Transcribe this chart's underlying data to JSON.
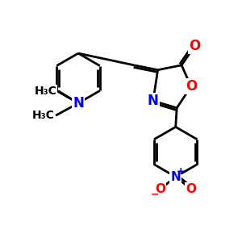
{
  "bg_color": "#ffffff",
  "bond_color": "#000000",
  "bond_width": 2.0,
  "atom_colors": {
    "O": "#ff0000",
    "N": "#0000ff",
    "C": "#000000"
  },
  "figsize": [
    3.0,
    3.0
  ],
  "dpi": 100
}
